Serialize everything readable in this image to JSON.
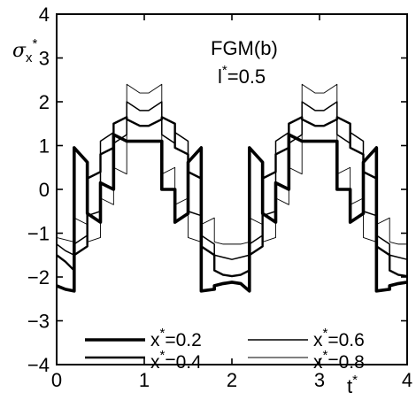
{
  "chart_data": {
    "type": "line",
    "xlabel": "t*",
    "ylabel": "σx*",
    "xlim": [
      0,
      4
    ],
    "ylim": [
      -4,
      4
    ],
    "xticks": [
      "0",
      "1",
      "2",
      "3",
      "4"
    ],
    "yticks": [
      "4",
      "3",
      "2",
      "1",
      "0",
      "−1",
      "−2",
      "−3",
      "−4"
    ],
    "annotations": [
      "FGM(b)",
      "l*=0.5"
    ],
    "legend_position": "lower center, two columns",
    "grid": false,
    "period": 2.0,
    "series": [
      {
        "name": "x*=0.2",
        "stroke_weight": "heaviest",
        "x": [
          0.0,
          0.1,
          0.2,
          0.2,
          0.35,
          0.35,
          0.5,
          0.5,
          0.65,
          0.65,
          0.8,
          0.8,
          0.95,
          1.05,
          1.2,
          1.2,
          1.35,
          1.35,
          1.5,
          1.5,
          1.65,
          1.65,
          1.8,
          1.8,
          1.9,
          2.0,
          2.1,
          2.2,
          2.2,
          2.35,
          2.35,
          2.5,
          2.5,
          2.65,
          2.65,
          2.8,
          2.8,
          2.95,
          3.05,
          3.2,
          3.2,
          3.35,
          3.35,
          3.5,
          3.5,
          3.65,
          3.65,
          3.8,
          3.8,
          3.9,
          4.0
        ],
        "y": [
          -2.2,
          -2.28,
          -2.32,
          0.95,
          0.62,
          -0.55,
          -0.75,
          0.15,
          0.0,
          1.25,
          1.1,
          1.1,
          1.1,
          1.1,
          1.1,
          0.0,
          0.0,
          -0.75,
          -0.55,
          0.62,
          0.95,
          -2.32,
          -2.28,
          -2.2,
          -2.15,
          -2.12,
          -2.15,
          -2.32,
          0.95,
          0.62,
          -0.55,
          -0.75,
          0.15,
          0.0,
          1.25,
          1.1,
          1.1,
          1.1,
          1.1,
          1.1,
          0.0,
          0.0,
          -0.75,
          -0.55,
          0.62,
          0.95,
          -2.32,
          -2.28,
          -2.2,
          -2.15,
          -2.12
        ]
      },
      {
        "name": "x*=0.4",
        "stroke_weight": "heavy",
        "x": [
          0.0,
          0.1,
          0.2,
          0.2,
          0.35,
          0.35,
          0.5,
          0.5,
          0.65,
          0.65,
          0.8,
          0.8,
          0.95,
          1.05,
          1.2,
          1.2,
          1.35,
          1.35,
          1.5,
          1.5,
          1.65,
          1.65,
          1.8,
          1.8,
          1.9,
          2.0,
          2.1,
          2.2,
          2.2,
          2.35,
          2.35,
          2.5,
          2.5,
          2.65,
          2.65,
          2.8,
          2.8,
          2.95,
          3.05,
          3.2,
          3.2,
          3.35,
          3.35,
          3.5,
          3.5,
          3.65,
          3.65,
          3.8,
          3.8,
          3.9,
          4.0
        ],
        "y": [
          -1.5,
          -1.65,
          -1.85,
          -1.5,
          -1.3,
          0.25,
          0.4,
          0.8,
          0.95,
          1.5,
          1.65,
          1.6,
          1.45,
          1.45,
          1.6,
          1.65,
          1.5,
          0.95,
          0.8,
          0.4,
          0.25,
          -1.3,
          -1.5,
          -1.85,
          -1.95,
          -1.98,
          -1.95,
          -1.85,
          -1.5,
          -1.3,
          0.25,
          0.4,
          0.8,
          0.95,
          1.5,
          1.65,
          1.6,
          1.45,
          1.45,
          1.6,
          1.65,
          1.5,
          0.95,
          0.8,
          0.4,
          0.25,
          -1.3,
          -1.5,
          -1.85,
          -1.95,
          -1.98
        ]
      },
      {
        "name": "x*=0.6",
        "stroke_weight": "medium",
        "x": [
          0.0,
          0.1,
          0.2,
          0.2,
          0.35,
          0.35,
          0.5,
          0.5,
          0.65,
          0.65,
          0.8,
          0.8,
          0.95,
          1.05,
          1.2,
          1.2,
          1.35,
          1.35,
          1.5,
          1.5,
          1.65,
          1.65,
          1.8,
          1.8,
          1.9,
          2.0,
          2.1,
          2.2,
          2.2,
          2.35,
          2.35,
          2.5,
          2.5,
          2.65,
          2.65,
          2.8,
          2.8,
          2.95,
          3.05,
          3.2,
          3.2,
          3.35,
          3.35,
          3.5,
          3.5,
          3.65,
          3.65,
          3.8,
          3.8,
          3.9,
          4.0
        ],
        "y": [
          -1.25,
          -1.4,
          -1.5,
          -1.25,
          -1.05,
          -0.6,
          -0.5,
          1.1,
          1.3,
          1.05,
          1.25,
          2.0,
          1.8,
          1.8,
          2.0,
          1.25,
          1.05,
          1.3,
          1.1,
          -0.5,
          -0.6,
          -1.05,
          -1.25,
          -1.5,
          -1.55,
          -1.6,
          -1.55,
          -1.5,
          -1.25,
          -1.05,
          -0.6,
          -0.5,
          1.1,
          1.3,
          1.05,
          1.25,
          2.0,
          1.8,
          1.8,
          2.0,
          1.25,
          1.05,
          1.3,
          1.1,
          -0.5,
          -0.6,
          -1.05,
          -1.25,
          -1.5,
          -1.55,
          -1.6
        ]
      },
      {
        "name": "x*=0.8",
        "stroke_weight": "light",
        "x": [
          0.0,
          0.1,
          0.2,
          0.2,
          0.35,
          0.35,
          0.5,
          0.5,
          0.65,
          0.65,
          0.8,
          0.8,
          0.95,
          1.05,
          1.2,
          1.2,
          1.35,
          1.35,
          1.5,
          1.5,
          1.65,
          1.65,
          1.8,
          1.8,
          1.9,
          2.0,
          2.1,
          2.2,
          2.2,
          2.35,
          2.35,
          2.5,
          2.5,
          2.65,
          2.65,
          2.8,
          2.8,
          2.95,
          3.05,
          3.2,
          3.2,
          3.35,
          3.35,
          3.5,
          3.5,
          3.65,
          3.65,
          3.8,
          3.8,
          3.9,
          4.0
        ],
        "y": [
          -1.1,
          -1.15,
          -1.2,
          -0.65,
          -0.8,
          -1.2,
          -1.1,
          -0.2,
          -0.35,
          0.5,
          0.35,
          2.4,
          2.2,
          2.2,
          2.4,
          0.35,
          0.5,
          -0.35,
          -0.2,
          -1.1,
          -1.2,
          -0.8,
          -0.65,
          -1.2,
          -1.25,
          -1.25,
          -1.25,
          -1.2,
          -0.65,
          -0.8,
          -1.2,
          -1.1,
          -0.2,
          -0.35,
          0.5,
          0.35,
          2.4,
          2.2,
          2.2,
          2.4,
          0.35,
          0.5,
          -0.35,
          -0.2,
          -1.1,
          -1.2,
          -0.8,
          -0.65,
          -1.2,
          -1.25,
          -1.25
        ]
      }
    ]
  }
}
